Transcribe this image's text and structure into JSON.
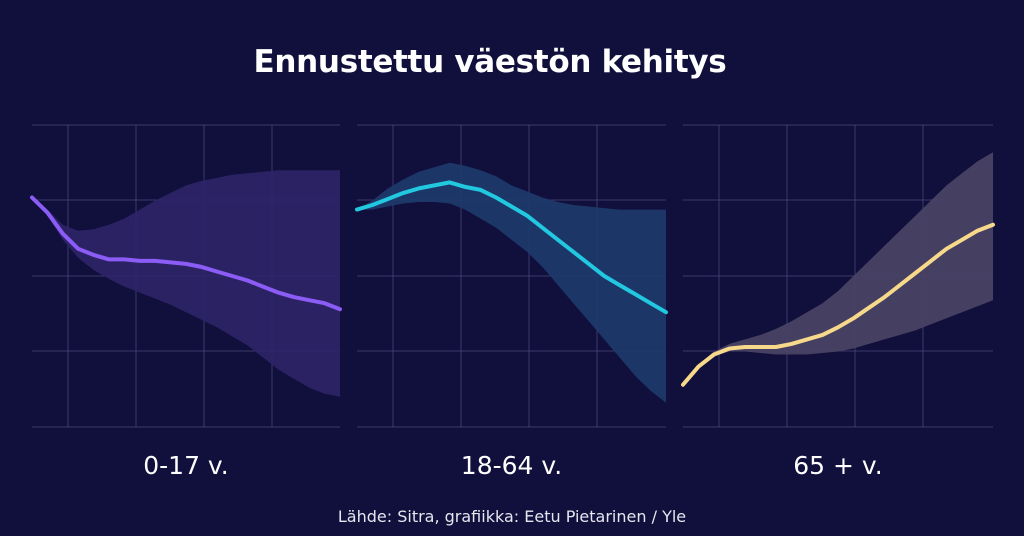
{
  "title": "Ennustettu väestön kehitys",
  "source": "Lähde: Sitra, grafiikka: Eetu Pietarinen / Yle",
  "chart_data": [
    {
      "type": "line",
      "label": "0-17 v.",
      "color": "#8b5cf6",
      "band_color": "#2e2468",
      "ylim": [
        0,
        1
      ],
      "x": [
        0,
        0.05,
        0.1,
        0.15,
        0.2,
        0.25,
        0.3,
        0.35,
        0.4,
        0.45,
        0.5,
        0.55,
        0.6,
        0.65,
        0.7,
        0.75,
        0.8,
        0.85,
        0.9,
        0.95,
        1
      ],
      "values": [
        0.76,
        0.71,
        0.64,
        0.59,
        0.57,
        0.555,
        0.555,
        0.55,
        0.55,
        0.545,
        0.54,
        0.53,
        0.515,
        0.5,
        0.485,
        0.465,
        0.445,
        0.43,
        0.42,
        0.41,
        0.39
      ],
      "upper": [
        0.76,
        0.72,
        0.67,
        0.65,
        0.655,
        0.67,
        0.69,
        0.72,
        0.75,
        0.775,
        0.8,
        0.815,
        0.825,
        0.835,
        0.84,
        0.845,
        0.85,
        0.85,
        0.85,
        0.85,
        0.85
      ],
      "lower": [
        0.76,
        0.7,
        0.62,
        0.56,
        0.52,
        0.49,
        0.465,
        0.445,
        0.425,
        0.405,
        0.38,
        0.355,
        0.33,
        0.3,
        0.27,
        0.23,
        0.19,
        0.16,
        0.13,
        0.11,
        0.1
      ]
    },
    {
      "type": "line",
      "label": "18-64 v.",
      "color": "#22c7e0",
      "band_color": "#1d3a6b",
      "ylim": [
        0,
        1
      ],
      "x": [
        0,
        0.05,
        0.1,
        0.15,
        0.2,
        0.25,
        0.3,
        0.35,
        0.4,
        0.45,
        0.5,
        0.55,
        0.6,
        0.65,
        0.7,
        0.75,
        0.8,
        0.85,
        0.9,
        0.95,
        1
      ],
      "values": [
        0.72,
        0.735,
        0.755,
        0.775,
        0.79,
        0.8,
        0.81,
        0.795,
        0.785,
        0.76,
        0.73,
        0.7,
        0.66,
        0.62,
        0.58,
        0.54,
        0.5,
        0.47,
        0.44,
        0.41,
        0.38
      ],
      "upper": [
        0.72,
        0.75,
        0.79,
        0.82,
        0.845,
        0.86,
        0.875,
        0.865,
        0.85,
        0.83,
        0.8,
        0.78,
        0.76,
        0.745,
        0.735,
        0.73,
        0.725,
        0.72,
        0.72,
        0.72,
        0.72
      ],
      "lower": [
        0.72,
        0.72,
        0.73,
        0.74,
        0.745,
        0.745,
        0.74,
        0.72,
        0.69,
        0.66,
        0.62,
        0.58,
        0.53,
        0.47,
        0.41,
        0.35,
        0.29,
        0.23,
        0.17,
        0.12,
        0.08
      ]
    },
    {
      "type": "line",
      "label": "65 + v.",
      "color": "#f7d98b",
      "band_color": "#4a4366",
      "ylim": [
        0,
        1
      ],
      "x": [
        0,
        0.05,
        0.1,
        0.15,
        0.2,
        0.25,
        0.3,
        0.35,
        0.4,
        0.45,
        0.5,
        0.55,
        0.6,
        0.65,
        0.7,
        0.75,
        0.8,
        0.85,
        0.9,
        0.95,
        1
      ],
      "values": [
        0.14,
        0.2,
        0.24,
        0.26,
        0.265,
        0.265,
        0.265,
        0.275,
        0.29,
        0.305,
        0.33,
        0.36,
        0.395,
        0.43,
        0.47,
        0.51,
        0.55,
        0.59,
        0.62,
        0.65,
        0.67
      ],
      "upper": [
        0.14,
        0.205,
        0.25,
        0.275,
        0.29,
        0.305,
        0.325,
        0.35,
        0.38,
        0.41,
        0.45,
        0.5,
        0.55,
        0.6,
        0.65,
        0.7,
        0.75,
        0.8,
        0.84,
        0.88,
        0.91
      ],
      "lower": [
        0.14,
        0.195,
        0.235,
        0.25,
        0.25,
        0.245,
        0.24,
        0.24,
        0.24,
        0.245,
        0.25,
        0.26,
        0.275,
        0.29,
        0.305,
        0.32,
        0.34,
        0.36,
        0.38,
        0.4,
        0.42
      ]
    }
  ]
}
